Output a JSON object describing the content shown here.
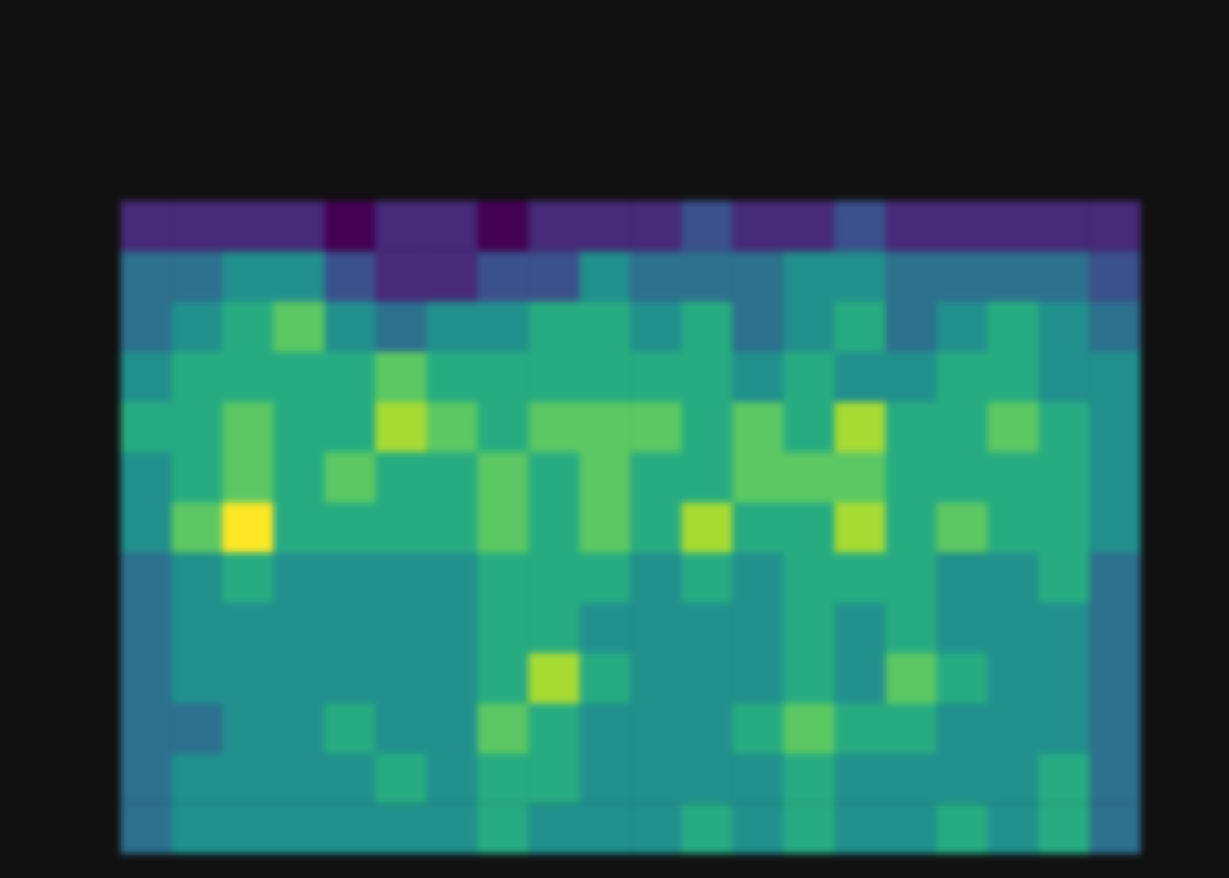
{
  "chart_data": {
    "type": "heatmap",
    "tick_labels": false,
    "grid": false,
    "cells": [
      [
        2,
        2,
        2,
        2,
        1,
        2,
        2,
        1,
        2,
        2,
        2,
        3,
        2,
        2,
        3,
        2,
        2,
        2,
        2,
        2
      ],
      [
        4,
        4,
        5,
        5,
        3,
        2,
        2,
        3,
        3,
        5,
        4,
        4,
        4,
        5,
        5,
        4,
        4,
        4,
        4,
        3
      ],
      [
        4,
        5,
        6,
        7,
        5,
        4,
        5,
        5,
        6,
        6,
        5,
        6,
        4,
        5,
        6,
        4,
        5,
        6,
        5,
        4
      ],
      [
        5,
        6,
        6,
        6,
        6,
        7,
        6,
        6,
        6,
        6,
        6,
        6,
        5,
        6,
        5,
        5,
        6,
        6,
        5,
        5
      ],
      [
        6,
        6,
        7,
        6,
        6,
        8,
        7,
        6,
        7,
        7,
        7,
        6,
        7,
        6,
        8,
        6,
        6,
        7,
        6,
        5
      ],
      [
        5,
        6,
        7,
        6,
        7,
        6,
        6,
        7,
        6,
        7,
        6,
        6,
        7,
        7,
        7,
        6,
        6,
        6,
        6,
        5
      ],
      [
        5,
        7,
        9,
        6,
        6,
        6,
        6,
        7,
        6,
        7,
        6,
        8,
        6,
        6,
        8,
        6,
        7,
        6,
        6,
        5
      ],
      [
        4,
        5,
        6,
        5,
        5,
        5,
        5,
        6,
        6,
        6,
        5,
        6,
        5,
        6,
        6,
        6,
        5,
        5,
        6,
        4
      ],
      [
        4,
        5,
        5,
        5,
        5,
        5,
        5,
        6,
        6,
        5,
        5,
        5,
        5,
        6,
        5,
        6,
        5,
        5,
        5,
        4
      ],
      [
        4,
        5,
        5,
        5,
        5,
        5,
        5,
        6,
        8,
        6,
        5,
        5,
        5,
        6,
        5,
        7,
        6,
        5,
        5,
        4
      ],
      [
        4,
        4,
        5,
        5,
        6,
        5,
        5,
        7,
        6,
        5,
        5,
        5,
        6,
        7,
        6,
        6,
        5,
        5,
        5,
        4
      ],
      [
        4,
        5,
        5,
        5,
        5,
        6,
        5,
        6,
        6,
        5,
        5,
        5,
        5,
        6,
        5,
        5,
        5,
        5,
        6,
        4
      ],
      [
        4,
        5,
        5,
        5,
        5,
        5,
        5,
        6,
        5,
        5,
        5,
        6,
        5,
        6,
        5,
        5,
        6,
        5,
        6,
        4
      ]
    ]
  }
}
